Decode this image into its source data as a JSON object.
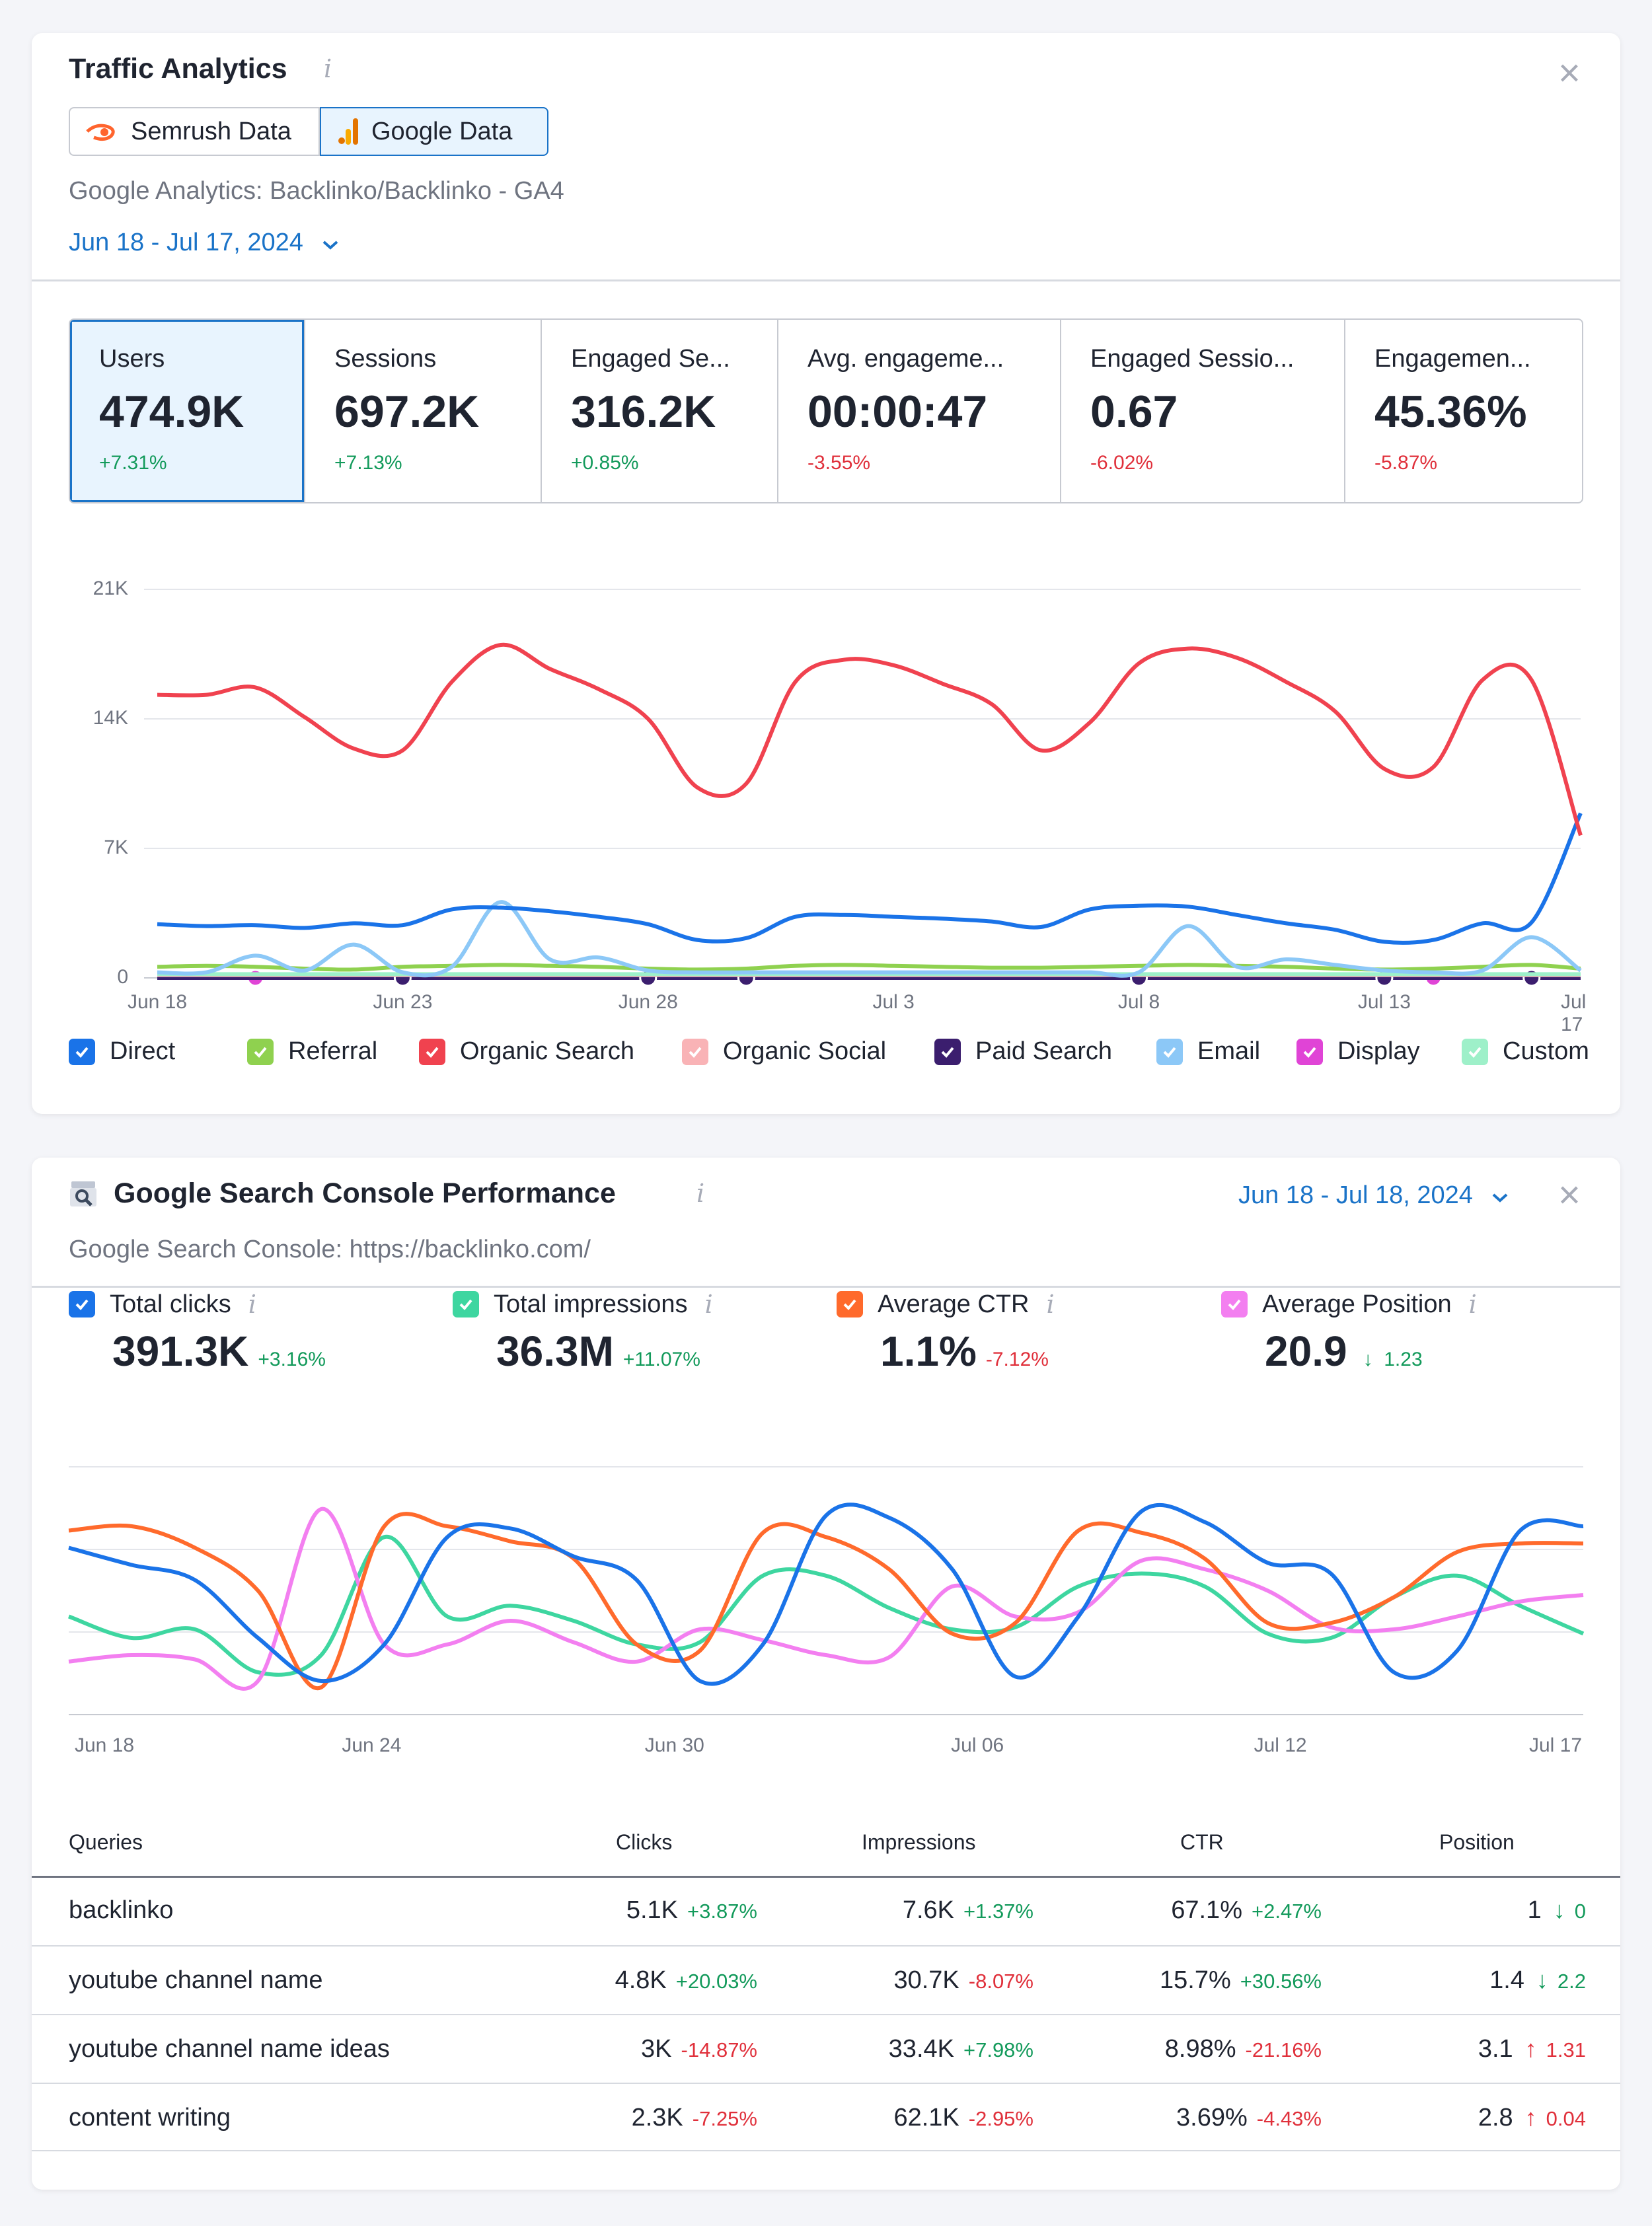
{
  "traffic": {
    "title": "Traffic Analytics",
    "info_icon": "i",
    "close_icon": "×",
    "toggle": {
      "semrush": "Semrush Data",
      "google": "Google Data"
    },
    "source": "Google Analytics: Backlinko/Backlinko - GA4",
    "date_range": "Jun 18 - Jul 17, 2024",
    "kpis": [
      {
        "label": "Users",
        "value": "474.9K",
        "change": "+7.31%"
      },
      {
        "label": "Sessions",
        "value": "697.2K",
        "change": "+7.13%"
      },
      {
        "label": "Engaged Se...",
        "value": "316.2K",
        "change": "+0.85%"
      },
      {
        "label": "Avg. engageme...",
        "value": "00:00:47",
        "change": "-3.55%"
      },
      {
        "label": "Engaged Sessio...",
        "value": "0.67",
        "change": "-6.02%"
      },
      {
        "label": "Engagemen...",
        "value": "45.36%",
        "change": "-5.87%"
      }
    ],
    "legend": [
      {
        "label": "Direct",
        "color": "#1a73e8"
      },
      {
        "label": "Referral",
        "color": "#8fd14f"
      },
      {
        "label": "Organic Search",
        "color": "#f0424f"
      },
      {
        "label": "Organic Social",
        "color": "#f9b3b6"
      },
      {
        "label": "Paid Search",
        "color": "#3b1e6e"
      },
      {
        "label": "Email",
        "color": "#8cc8f7"
      },
      {
        "label": "Display",
        "color": "#e044d6"
      },
      {
        "label": "Custom",
        "color": "#9ef0c9"
      }
    ]
  },
  "gsc": {
    "title": "Google Search Console Performance",
    "info_icon": "i",
    "close_icon": "×",
    "source": "Google Search Console: https://backlinko.com/",
    "date_range": "Jun 18 - Jul 18, 2024",
    "metrics": [
      {
        "label": "Total clicks",
        "value": "391.3K",
        "change": "+3.16%",
        "color": "#1a73e8"
      },
      {
        "label": "Total impressions",
        "value": "36.3M",
        "change": "+11.07%",
        "color": "#3ed6a0"
      },
      {
        "label": "Average CTR",
        "value": "1.1%",
        "change": "-7.12%",
        "color": "#ff6a2c"
      },
      {
        "label": "Average Position",
        "value": "20.9",
        "change": "1.23",
        "color": "#f37ff0"
      }
    ],
    "table": {
      "headers": {
        "queries": "Queries",
        "clicks": "Clicks",
        "impressions": "Impressions",
        "ctr": "CTR",
        "position": "Position"
      },
      "rows": [
        {
          "query": "backlinko",
          "clicks": "5.1K",
          "clicks_chg": "+3.87%",
          "impr": "7.6K",
          "impr_chg": "+1.37%",
          "ctr": "67.1%",
          "ctr_chg": "+2.47%",
          "pos": "1",
          "pos_chg": "0"
        },
        {
          "query": "youtube channel name",
          "clicks": "4.8K",
          "clicks_chg": "+20.03%",
          "impr": "30.7K",
          "impr_chg": "-8.07%",
          "ctr": "15.7%",
          "ctr_chg": "+30.56%",
          "pos": "1.4",
          "pos_chg": "2.2"
        },
        {
          "query": "youtube channel name ideas",
          "clicks": "3K",
          "clicks_chg": "-14.87%",
          "impr": "33.4K",
          "impr_chg": "+7.98%",
          "ctr": "8.98%",
          "ctr_chg": "-21.16%",
          "pos": "3.1",
          "pos_chg": "1.31"
        },
        {
          "query": "content writing",
          "clicks": "2.3K",
          "clicks_chg": "-7.25%",
          "impr": "62.1K",
          "impr_chg": "-2.95%",
          "ctr": "3.69%",
          "ctr_chg": "-4.43%",
          "pos": "2.8",
          "pos_chg": "0.04"
        }
      ]
    }
  },
  "chart_data": [
    {
      "type": "line",
      "title": "Traffic Analytics",
      "x": [
        "Jun 18",
        "Jun 19",
        "Jun 20",
        "Jun 21",
        "Jun 22",
        "Jun 23",
        "Jun 24",
        "Jun 25",
        "Jun 26",
        "Jun 27",
        "Jun 28",
        "Jun 29",
        "Jun 30",
        "Jul 1",
        "Jul 2",
        "Jul 3",
        "Jul 4",
        "Jul 5",
        "Jul 6",
        "Jul 7",
        "Jul 8",
        "Jul 9",
        "Jul 10",
        "Jul 11",
        "Jul 12",
        "Jul 13",
        "Jul 14",
        "Jul 15",
        "Jul 16",
        "Jul 17"
      ],
      "xticks": [
        "Jun 18",
        "Jun 23",
        "Jun 28",
        "Jul 3",
        "Jul 8",
        "Jul 13",
        "Jul 17"
      ],
      "yticks": [
        "0",
        "7K",
        "14K",
        "21K"
      ],
      "ylim": [
        0,
        21000
      ],
      "series": [
        {
          "name": "Organic Search",
          "color": "#f0424f",
          "values": [
            15300,
            15300,
            15700,
            14100,
            12400,
            12300,
            16000,
            18000,
            16700,
            15600,
            14000,
            10300,
            10500,
            16000,
            17200,
            16900,
            15900,
            14800,
            12300,
            13800,
            17000,
            17800,
            17300,
            16000,
            14400,
            11300,
            11400,
            16100,
            16100,
            7700
          ]
        },
        {
          "name": "Direct",
          "color": "#1a73e8",
          "values": [
            2900,
            2800,
            2850,
            2700,
            2950,
            2850,
            3700,
            3800,
            3600,
            3300,
            2900,
            2050,
            2150,
            3300,
            3400,
            3300,
            3200,
            3050,
            2750,
            3700,
            3900,
            3850,
            3400,
            2950,
            2600,
            1950,
            2050,
            2950,
            3000,
            8900
          ]
        },
        {
          "name": "Email",
          "color": "#8cc8f7",
          "values": [
            300,
            300,
            1200,
            400,
            1800,
            300,
            600,
            4100,
            1000,
            1100,
            400,
            300,
            300,
            300,
            300,
            300,
            300,
            300,
            300,
            300,
            300,
            2800,
            600,
            1000,
            700,
            400,
            300,
            400,
            2200,
            400
          ]
        },
        {
          "name": "Referral",
          "color": "#8fd14f",
          "values": [
            600,
            650,
            600,
            500,
            450,
            600,
            650,
            700,
            650,
            600,
            500,
            450,
            500,
            650,
            700,
            650,
            600,
            550,
            550,
            600,
            650,
            700,
            650,
            600,
            500,
            450,
            500,
            600,
            700,
            500
          ]
        },
        {
          "name": "Custom",
          "color": "#9ef0c9",
          "values": [
            200,
            200,
            200,
            200,
            200,
            200,
            200,
            200,
            200,
            200,
            200,
            200,
            200,
            200,
            200,
            200,
            200,
            200,
            200,
            200,
            200,
            200,
            200,
            200,
            200,
            200,
            200,
            200,
            200,
            200
          ]
        },
        {
          "name": "Organic Social",
          "color": "#f9b3b6",
          "values": [
            150,
            150,
            150,
            150,
            150,
            150,
            150,
            150,
            150,
            150,
            150,
            150,
            150,
            150,
            150,
            150,
            150,
            150,
            150,
            150,
            150,
            150,
            150,
            150,
            150,
            150,
            150,
            150,
            150,
            150
          ]
        },
        {
          "name": "Paid Search",
          "color": "#3b1e6e",
          "markers": [
            "Jun 23",
            "Jun 28",
            "Jun 30",
            "Jul 8",
            "Jul 13",
            "Jul 16"
          ],
          "values": [
            0,
            0,
            0,
            0,
            0,
            0,
            0,
            0,
            0,
            0,
            0,
            0,
            0,
            0,
            0,
            0,
            0,
            0,
            0,
            0,
            0,
            0,
            0,
            0,
            0,
            0,
            0,
            0,
            0,
            0
          ]
        },
        {
          "name": "Display",
          "color": "#e044d6",
          "markers": [
            "Jun 20",
            "Jul 14"
          ],
          "values": [
            0,
            0,
            0,
            0,
            0,
            0,
            0,
            0,
            0,
            0,
            0,
            0,
            0,
            0,
            0,
            0,
            0,
            0,
            0,
            0,
            0,
            0,
            0,
            0,
            0,
            0,
            0,
            0,
            0,
            0
          ]
        }
      ]
    },
    {
      "type": "line",
      "title": "Google Search Console Performance",
      "xticks": [
        "Jun 18",
        "Jun 24",
        "Jun 30",
        "Jul 06",
        "Jul 12",
        "Jul 17"
      ],
      "note": "values normalized 0-100 per metric (no y-axis labels shown)",
      "ylim": [
        0,
        100
      ],
      "series": [
        {
          "name": "Total clicks",
          "color": "#1a73e8",
          "values": [
            70,
            62,
            55,
            28,
            8,
            25,
            75,
            79,
            66,
            55,
            8,
            25,
            85,
            84,
            60,
            10,
            38,
            87,
            82,
            63,
            58,
            12,
            22,
            78,
            80
          ]
        },
        {
          "name": "Total impressions",
          "color": "#3ed6a0",
          "values": [
            38,
            28,
            32,
            12,
            20,
            75,
            38,
            43,
            36,
            25,
            26,
            57,
            57,
            42,
            32,
            33,
            52,
            58,
            52,
            30,
            28,
            47,
            57,
            43,
            30
          ]
        },
        {
          "name": "Average CTR",
          "color": "#ff6a2c",
          "values": [
            78,
            80,
            70,
            50,
            5,
            80,
            80,
            73,
            65,
            25,
            22,
            77,
            75,
            60,
            30,
            35,
            78,
            77,
            65,
            35,
            35,
            47,
            68,
            72,
            72
          ]
        },
        {
          "name": "Average Position",
          "color": "#f37ff0",
          "values": [
            17,
            20,
            18,
            8,
            88,
            25,
            25,
            36,
            26,
            17,
            32,
            27,
            20,
            19,
            52,
            38,
            40,
            64,
            60,
            50,
            33,
            32,
            38,
            45,
            48
          ]
        }
      ]
    }
  ]
}
